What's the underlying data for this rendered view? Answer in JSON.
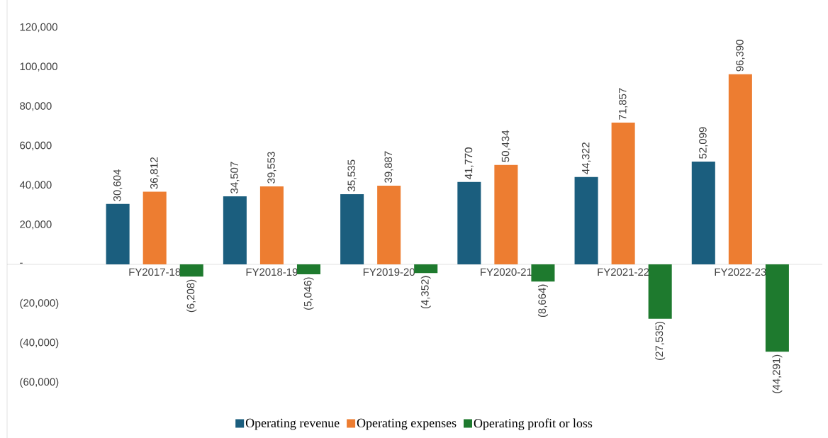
{
  "chart_data": {
    "type": "bar",
    "categories": [
      "FY2017-18",
      "FY2018-19",
      "FY2019-20",
      "FY2020-21",
      "FY2021-22",
      "FY2022-23"
    ],
    "series": [
      {
        "name": "Operating revenue",
        "color": "#1b5e7e",
        "values": [
          30604,
          34507,
          35535,
          41770,
          44322,
          52099
        ],
        "value_labels": [
          "30,604",
          "34,507",
          "35,535",
          "41,770",
          "44,322",
          "52,099"
        ]
      },
      {
        "name": "Operating expenses",
        "color": "#ed7d31",
        "values": [
          36812,
          39553,
          39887,
          50434,
          71857,
          96390
        ],
        "value_labels": [
          "36,812",
          "39,553",
          "39,887",
          "50,434",
          "71,857",
          "96,390"
        ]
      },
      {
        "name": "Operating profit or loss",
        "color": "#1e7a2e",
        "values": [
          -6208,
          -5046,
          -4352,
          -8664,
          -27535,
          -44291
        ],
        "value_labels": [
          "(6,208)",
          "(5,046)",
          "(4,352)",
          "(8,664)",
          "(27,535)",
          "(44,291)"
        ]
      }
    ],
    "ylim": [
      -88000,
      134000
    ],
    "yticks": [
      {
        "value": -60000,
        "label": "(60,000)"
      },
      {
        "value": -40000,
        "label": "(40,000)"
      },
      {
        "value": -20000,
        "label": "(20,000)"
      },
      {
        "value": 0,
        "label": "-"
      },
      {
        "value": 20000,
        "label": "20,000"
      },
      {
        "value": 40000,
        "label": "40,000"
      },
      {
        "value": 60000,
        "label": "60,000"
      },
      {
        "value": 80000,
        "label": "80,000"
      },
      {
        "value": 100000,
        "label": "100,000"
      },
      {
        "value": 120000,
        "label": "120,000"
      }
    ],
    "grid": false,
    "legend": "bottom"
  }
}
